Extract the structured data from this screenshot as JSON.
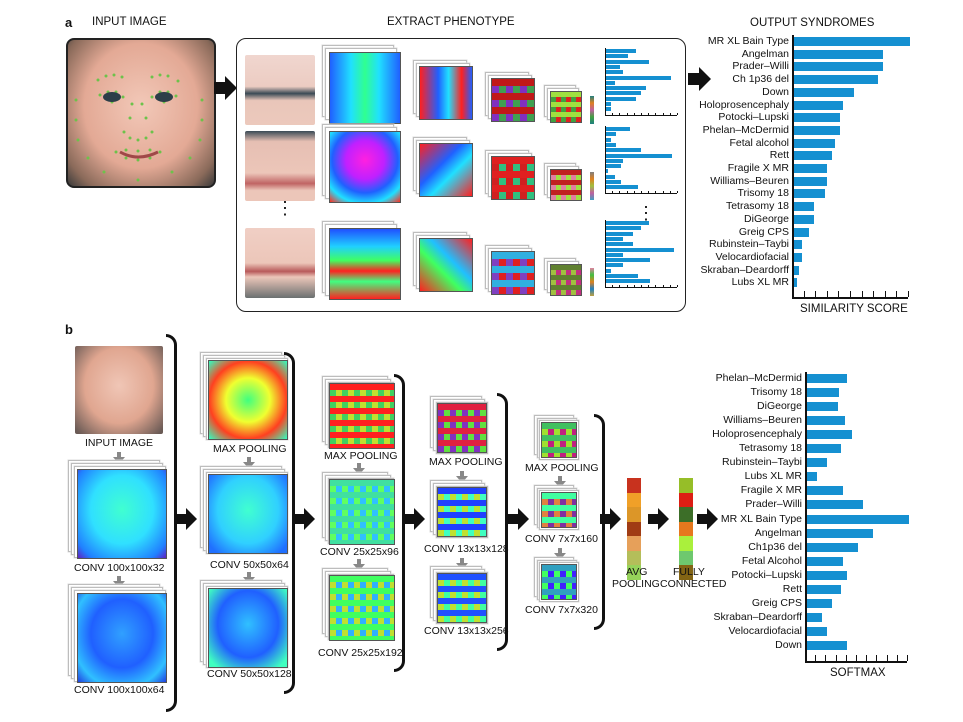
{
  "panel_a": {
    "letter": "a",
    "input_label": "INPUT IMAGE",
    "extract_label": "EXTRACT PHENOTYPE",
    "output_label": "OUTPUT SYNDROMES",
    "ellipsis": "⋮"
  },
  "panel_b": {
    "letter": "b",
    "input_label": "INPUT IMAGE",
    "col1": [
      "CONV 100x100x32",
      "CONV 100x100x64"
    ],
    "col2": [
      "MAX POOLING",
      "CONV 50x50x64",
      "CONV 50x50x128"
    ],
    "col3": [
      "MAX POOLING",
      "CONV 25x25x96",
      "CONV 25x25x192"
    ],
    "col4": [
      "MAX POOLING",
      "CONV 13x13x128",
      "CONV 13x13x256"
    ],
    "col5": [
      "MAX POOLING",
      "CONV 7x7x160",
      "CONV 7x7x320"
    ],
    "avg_pooling": [
      "AVG",
      "POOLING"
    ],
    "fully_connected": [
      "FULLY",
      "CONNECTED"
    ],
    "avg_colors": [
      "#c8321e",
      "#f0a028",
      "#dc9628",
      "#a03c14",
      "#e6a05a",
      "#b4be5a",
      "#96d25a"
    ],
    "fc_colors": [
      "#96be28",
      "#dc1e14",
      "#3c6e28",
      "#e6781e",
      "#aaf03c",
      "#6ec86e",
      "#826414"
    ]
  },
  "mini_charts": [
    {
      "values": [
        4.2,
        3.1,
        6.0,
        1.9,
        2.4,
        9.0,
        1.3,
        5.5,
        4.8,
        4.2,
        0.7,
        0.7
      ]
    },
    {
      "values": [
        3.3,
        1.4,
        0.7,
        1.4,
        4.8,
        9.1,
        2.4,
        2.1,
        0.3,
        1.2,
        2.1,
        4.5
      ]
    },
    {
      "values": [
        6.0,
        4.8,
        3.7,
        2.4,
        3.7,
        9.5,
        2.4,
        6.1,
        2.4,
        0.7,
        4.5,
        6.1
      ]
    }
  ],
  "chart_data": [
    {
      "type": "bar",
      "orientation": "horizontal",
      "title": "OUTPUT SYNDROMES",
      "xlabel": "SIMILARITY SCORE",
      "ylabel": "",
      "xlim": [
        0,
        10
      ],
      "xticks_count": 10,
      "categories": [
        "MR XL Bain Type",
        "Angelman",
        "Prader–Willi",
        "Ch 1p36 del",
        "Down",
        "Holoprosencephaly",
        "Potocki–Lupski",
        "Phelan–McDermid",
        "Fetal alcohol",
        "Rett",
        "Fragile X MR",
        "Williams–Beuren",
        "Trisomy 18",
        "Tetrasomy 18",
        "DiGeorge",
        "Greig CPS",
        "Rubinstein–Taybi",
        "Velocardiofacial",
        "Skraban–Deardorff",
        "Lubs XL MR"
      ],
      "values": [
        10.0,
        7.7,
        7.7,
        7.3,
        5.2,
        4.3,
        4.0,
        4.0,
        3.6,
        3.3,
        2.9,
        2.9,
        2.7,
        1.8,
        1.8,
        1.3,
        0.7,
        0.7,
        0.45,
        0.3
      ],
      "color": "#1590d1"
    },
    {
      "type": "bar",
      "orientation": "horizontal",
      "title": "",
      "xlabel": "SOFTMAX",
      "ylabel": "",
      "xlim": [
        0,
        10
      ],
      "xticks_count": 10,
      "categories": [
        "Phelan–McDermid",
        "Trisomy 18",
        "DiGeorge",
        "Williams–Beuren",
        "Holoprosencephaly",
        "Tetrasomy 18",
        "Rubinstein–Taybi",
        "Lubs XL MR",
        "Fragile X MR",
        "Prader–Willi",
        "MR XL Bain Type",
        "Angelman",
        "Ch1p36 del",
        "Fetal Alcohol",
        "Potocki–Lupski",
        "Rett",
        "Greig CPS",
        "Skraban–Deardorff",
        "Velocardiofacial",
        "Down"
      ],
      "values": [
        4.0,
        3.2,
        3.1,
        3.8,
        4.5,
        3.4,
        2.0,
        1.0,
        3.6,
        5.5,
        10.0,
        6.5,
        5.0,
        3.6,
        4.0,
        3.4,
        2.5,
        1.5,
        2.0,
        4.0
      ],
      "color": "#1590d1"
    }
  ]
}
